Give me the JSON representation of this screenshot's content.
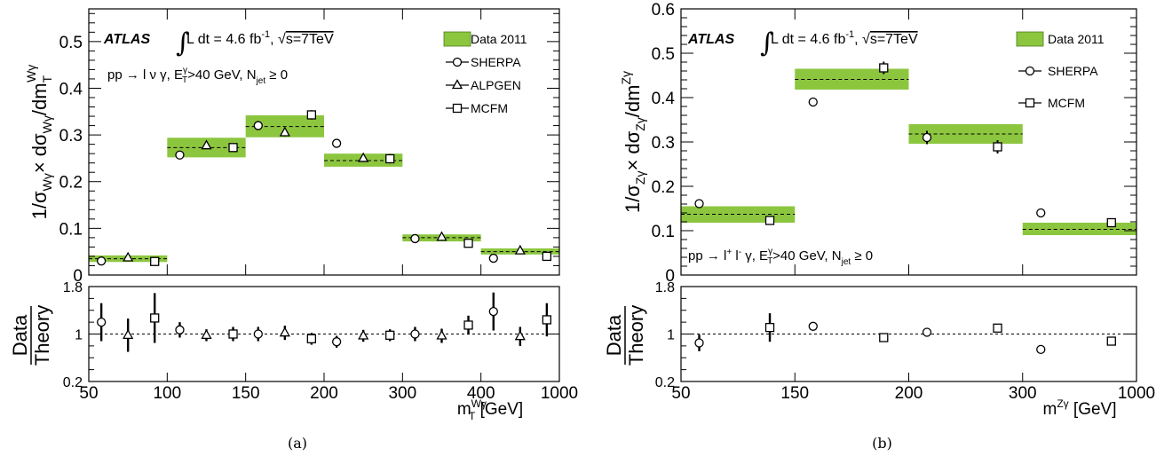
{
  "chart_data": [
    {
      "id": "a",
      "type": "bar",
      "panel_label": "(a)",
      "atlas_label": "ATLAS",
      "lumi_text": "L dt = 4.6 fb",
      "lumi_sup": "-1",
      "energy_text": "s=7TeV",
      "process": {
        "pre": "pp → l ν γ, E",
        "sup1": "γ",
        "sub1": "T",
        "mid": ">40 GeV, N",
        "sub2": "jet",
        "post": " ≥ 0"
      },
      "xlabel": {
        "main": "m",
        "sup": "Wγ",
        "sub": "T",
        "unit": " [GeV]"
      },
      "ylabel": "1/σ_Wγ × dσ_Wγ/dm_T^Wγ",
      "ratio_label": {
        "top": "Data",
        "bottom": "Theory"
      },
      "x_ticks": [
        "50",
        "100",
        "150",
        "200",
        "300",
        "400",
        "1000"
      ],
      "x_edges": [
        50,
        100,
        150,
        200,
        300,
        400,
        1000
      ],
      "y_ticks": [
        "0",
        "0.1",
        "0.2",
        "0.3",
        "0.4",
        "0.5"
      ],
      "ylim": [
        0,
        0.57
      ],
      "ratio_ticks": [
        "0.2",
        "1",
        "1.8"
      ],
      "ratio_ylim": [
        0.2,
        1.8
      ],
      "legend": [
        {
          "label": "Data 2011",
          "marker": "box"
        },
        {
          "label": "SHERPA",
          "marker": "circle"
        },
        {
          "label": "ALPGEN",
          "marker": "triangle"
        },
        {
          "label": "MCFM",
          "marker": "square"
        }
      ],
      "data": [
        {
          "value": 0.035,
          "band": [
            0.028,
            0.042
          ]
        },
        {
          "value": 0.273,
          "band": [
            0.252,
            0.294
          ]
        },
        {
          "value": 0.318,
          "band": [
            0.295,
            0.342
          ]
        },
        {
          "value": 0.245,
          "band": [
            0.232,
            0.26
          ]
        },
        {
          "value": 0.08,
          "band": [
            0.072,
            0.087
          ]
        },
        {
          "value": 0.05,
          "band": [
            0.044,
            0.057
          ]
        }
      ],
      "series": [
        {
          "name": "SHERPA",
          "marker": "circle",
          "values": [
            0.03,
            0.257,
            0.32,
            0.282,
            0.078,
            0.036
          ],
          "errors": [
            0.003,
            0.006,
            0.008,
            0.007,
            0.003,
            0.002
          ],
          "ratio": [
            1.2,
            1.07,
            1.0,
            0.87,
            1.0,
            1.38
          ],
          "ratio_err": [
            0.32,
            0.13,
            0.12,
            0.1,
            0.12,
            0.32
          ]
        },
        {
          "name": "ALPGEN",
          "marker": "triangle",
          "values": [
            0.037,
            0.277,
            0.305,
            0.25,
            0.081,
            0.052
          ],
          "errors": [
            0.003,
            0.006,
            0.008,
            0.006,
            0.003,
            0.002
          ],
          "ratio": [
            0.98,
            0.98,
            1.02,
            0.97,
            0.97,
            0.96
          ],
          "ratio_err": [
            0.28,
            0.1,
            0.12,
            0.1,
            0.12,
            0.16
          ]
        },
        {
          "name": "MCFM",
          "marker": "square",
          "values": [
            0.029,
            0.273,
            0.343,
            0.249,
            0.068,
            0.04
          ],
          "errors": [
            0.003,
            0.008,
            0.01,
            0.01,
            0.004,
            0.002
          ],
          "ratio": [
            1.27,
            1.0,
            0.92,
            0.98,
            1.15,
            1.24
          ],
          "ratio_err": [
            0.42,
            0.12,
            0.1,
            0.1,
            0.16,
            0.28
          ]
        }
      ]
    },
    {
      "id": "b",
      "type": "bar",
      "panel_label": "(b)",
      "atlas_label": "ATLAS",
      "lumi_text": "L dt = 4.6 fb",
      "lumi_sup": "-1",
      "energy_text": "s=7TeV",
      "process": {
        "pre": "pp → l",
        "sup0": "+",
        "mid0": " l",
        "sup0b": "-",
        "mid0b": " γ, E",
        "sup1": "γ",
        "sub1": "T",
        "mid": ">40 GeV, N",
        "sub2": "jet",
        "post": " ≥ 0"
      },
      "xlabel": {
        "main": "m",
        "sup": "Zγ",
        "sub": "",
        "unit": " [GeV]"
      },
      "ylabel": "1/σ_Zγ × dσ_Zγ/dm^Zγ",
      "ratio_label": {
        "top": "Data",
        "bottom": "Theory"
      },
      "x_ticks": [
        "50",
        "150",
        "200",
        "300",
        "1000"
      ],
      "x_edges": [
        50,
        150,
        200,
        300,
        1000
      ],
      "y_ticks": [
        "0",
        "0.1",
        "0.2",
        "0.3",
        "0.4",
        "0.5",
        "0.6"
      ],
      "ylim": [
        0,
        0.6
      ],
      "ratio_ticks": [
        "0.2",
        "1",
        "1.8"
      ],
      "ratio_ylim": [
        0.2,
        1.8
      ],
      "legend": [
        {
          "label": "Data 2011",
          "marker": "box"
        },
        {
          "label": "SHERPA",
          "marker": "circle"
        },
        {
          "label": "MCFM",
          "marker": "square"
        }
      ],
      "data": [
        {
          "value": 0.137,
          "band": [
            0.118,
            0.155
          ]
        },
        {
          "value": 0.441,
          "band": [
            0.418,
            0.465
          ]
        },
        {
          "value": 0.318,
          "band": [
            0.296,
            0.34
          ]
        },
        {
          "value": 0.103,
          "band": [
            0.09,
            0.118
          ]
        }
      ],
      "series": [
        {
          "name": "SHERPA",
          "marker": "circle",
          "values": [
            0.161,
            0.39,
            0.31,
            0.14
          ],
          "errors": [
            0.006,
            0.01,
            0.015,
            0.005
          ],
          "ratio": [
            0.85,
            1.13,
            1.03,
            0.74
          ],
          "ratio_err": [
            0.14,
            0.04,
            0.03,
            0.03
          ]
        },
        {
          "name": "MCFM",
          "marker": "square",
          "values": [
            0.123,
            0.467,
            0.289,
            0.118
          ],
          "errors": [
            0.006,
            0.014,
            0.015,
            0.006
          ],
          "ratio": [
            1.11,
            0.94,
            1.1,
            0.88
          ],
          "ratio_err": [
            0.24,
            0.04,
            0.04,
            0.03
          ]
        }
      ]
    }
  ]
}
